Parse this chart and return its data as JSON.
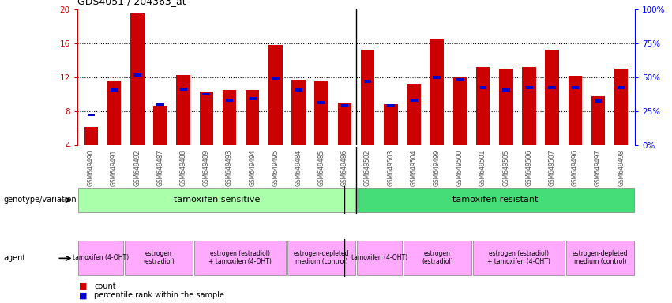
{
  "title": "GDS4051 / 204363_at",
  "samples": [
    "GSM649490",
    "GSM649491",
    "GSM649492",
    "GSM649487",
    "GSM649488",
    "GSM649489",
    "GSM649493",
    "GSM649494",
    "GSM649495",
    "GSM649484",
    "GSM649485",
    "GSM649486",
    "GSM649502",
    "GSM649503",
    "GSM649504",
    "GSM649499",
    "GSM649500",
    "GSM649501",
    "GSM649505",
    "GSM649506",
    "GSM649507",
    "GSM649496",
    "GSM649497",
    "GSM649498"
  ],
  "count": [
    6.2,
    11.5,
    19.5,
    8.7,
    12.3,
    10.3,
    10.5,
    10.5,
    15.8,
    11.7,
    11.5,
    9.0,
    15.2,
    8.8,
    11.2,
    16.5,
    12.0,
    13.2,
    13.0,
    13.2,
    15.2,
    12.2,
    9.8,
    13.0
  ],
  "percentile": [
    7.6,
    10.5,
    12.3,
    8.8,
    10.6,
    10.0,
    9.3,
    9.5,
    11.8,
    10.5,
    9.0,
    8.7,
    11.5,
    8.7,
    9.3,
    12.0,
    11.7,
    10.8,
    10.5,
    10.8,
    10.8,
    10.8,
    9.2,
    10.8
  ],
  "ylim": [
    4,
    20
  ],
  "yticks": [
    4,
    8,
    12,
    16,
    20
  ],
  "bar_color": "#cc0000",
  "percentile_color": "#0000cc",
  "bg_color": "#ffffff",
  "tick_label_color": "#555555",
  "genotype_sensitive_color": "#aaffaa",
  "genotype_resistant_color": "#44dd77",
  "agent_color": "#ffaaff",
  "separator_at": 11.5,
  "bar_width": 0.6,
  "genotype_groups": [
    {
      "name": "tamoxifen sensitive",
      "start": 0,
      "end": 11
    },
    {
      "name": "tamoxifen resistant",
      "start": 12,
      "end": 23
    }
  ],
  "agent_groups": [
    {
      "name": "tamoxifen (4-OHT)",
      "start": 0,
      "end": 1
    },
    {
      "name": "estrogen\n(estradiol)",
      "start": 2,
      "end": 4
    },
    {
      "name": "estrogen (estradiol)\n+ tamoxifen (4-OHT)",
      "start": 5,
      "end": 8
    },
    {
      "name": "estrogen-depleted\nmedium (control)",
      "start": 9,
      "end": 11
    },
    {
      "name": "tamoxifen (4-OHT)",
      "start": 12,
      "end": 13
    },
    {
      "name": "estrogen\n(estradiol)",
      "start": 14,
      "end": 16
    },
    {
      "name": "estrogen (estradiol)\n+ tamoxifen (4-OHT)",
      "start": 17,
      "end": 20
    },
    {
      "name": "estrogen-depleted\nmedium (control)",
      "start": 21,
      "end": 23
    }
  ]
}
